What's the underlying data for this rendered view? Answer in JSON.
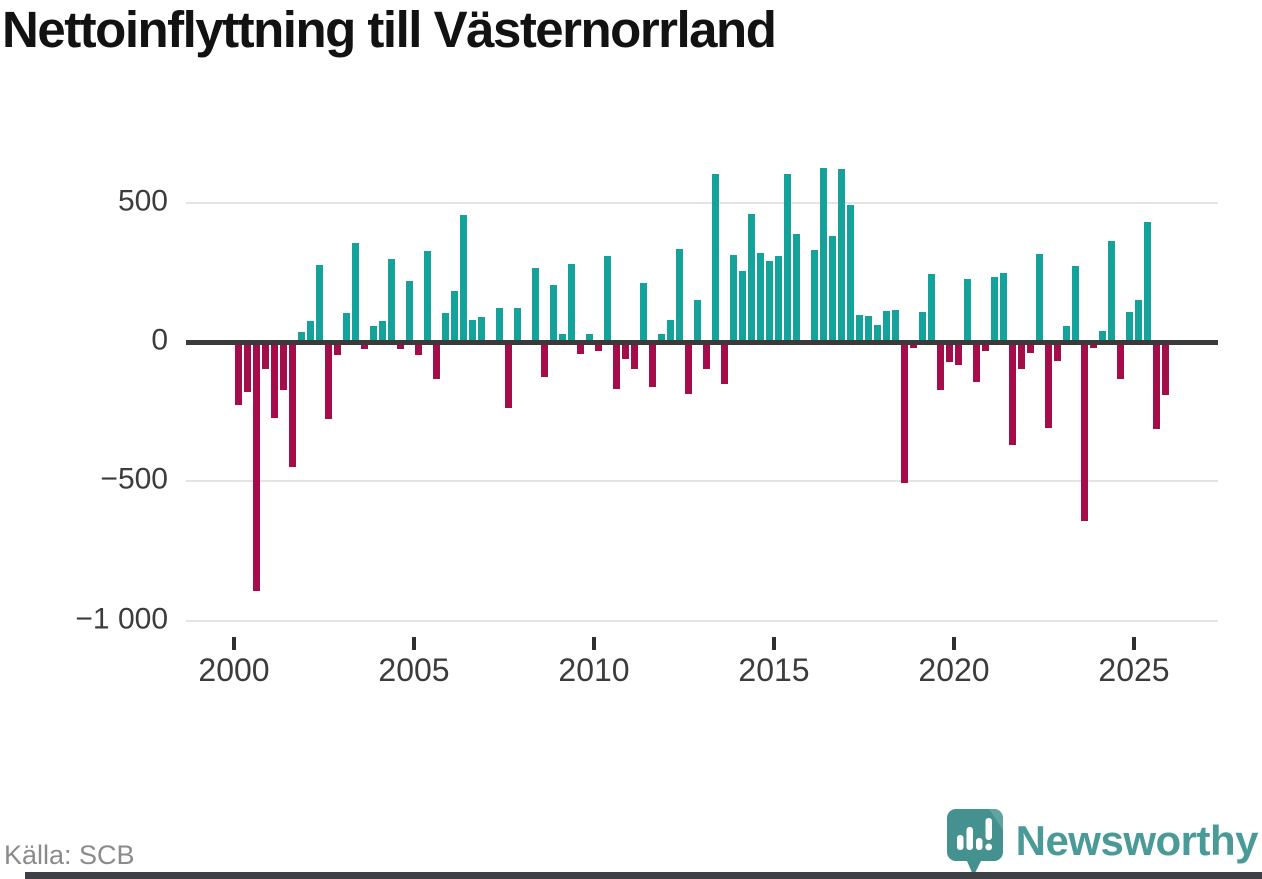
{
  "title": "Nettoinflyttning till Västernorrland",
  "source": "Källa: SCB",
  "brand": {
    "name": "Newsworthy",
    "color": "#4a9a97"
  },
  "colors": {
    "positive_bar": "#14a29b",
    "negative_bar": "#a50d4a",
    "zero_axis": "#3a3a3a",
    "gridline": "#e4e4e4",
    "tick_label": "#3c3c3c",
    "source_text": "#8b8b8b",
    "bottom_strip": "#3d4045"
  },
  "chart_data": {
    "type": "bar",
    "title": "Nettoinflyttning till Västernorrland",
    "frequency": "quarterly",
    "x_start": "2000Q1",
    "x_end": "2025Q4",
    "grid": "horizontal",
    "legend": "none",
    "ylim": [
      -1050,
      660
    ],
    "y_ticks": [
      500,
      0,
      -500,
      -1000
    ],
    "y_tick_labels": [
      "500",
      "0",
      "−500",
      "−1 000"
    ],
    "x_tick_labels": [
      "2000",
      "2005",
      "2010",
      "2015",
      "2020",
      "2025"
    ],
    "categories": [
      "2000Q1",
      "2000Q2",
      "2000Q3",
      "2000Q4",
      "2001Q1",
      "2001Q2",
      "2001Q3",
      "2001Q4",
      "2002Q1",
      "2002Q2",
      "2002Q3",
      "2002Q4",
      "2003Q1",
      "2003Q2",
      "2003Q3",
      "2003Q4",
      "2004Q1",
      "2004Q2",
      "2004Q3",
      "2004Q4",
      "2005Q1",
      "2005Q2",
      "2005Q3",
      "2005Q4",
      "2006Q1",
      "2006Q2",
      "2006Q3",
      "2006Q4",
      "2007Q1",
      "2007Q2",
      "2007Q3",
      "2007Q4",
      "2008Q1",
      "2008Q2",
      "2008Q3",
      "2008Q4",
      "2009Q1",
      "2009Q2",
      "2009Q3",
      "2009Q4",
      "2010Q1",
      "2010Q2",
      "2010Q3",
      "2010Q4",
      "2011Q1",
      "2011Q2",
      "2011Q3",
      "2011Q4",
      "2012Q1",
      "2012Q2",
      "2012Q3",
      "2012Q4",
      "2013Q1",
      "2013Q2",
      "2013Q3",
      "2013Q4",
      "2014Q1",
      "2014Q2",
      "2014Q3",
      "2014Q4",
      "2015Q1",
      "2015Q2",
      "2015Q3",
      "2015Q4",
      "2016Q1",
      "2016Q2",
      "2016Q3",
      "2016Q4",
      "2017Q1",
      "2017Q2",
      "2017Q3",
      "2017Q4",
      "2018Q1",
      "2018Q2",
      "2018Q3",
      "2018Q4",
      "2019Q1",
      "2019Q2",
      "2019Q3",
      "2019Q4",
      "2020Q1",
      "2020Q2",
      "2020Q3",
      "2020Q4",
      "2021Q1",
      "2021Q2",
      "2021Q3",
      "2021Q4",
      "2022Q1",
      "2022Q2",
      "2022Q3",
      "2022Q4",
      "2023Q1",
      "2023Q2",
      "2023Q3",
      "2023Q4",
      "2024Q1",
      "2024Q2",
      "2024Q3",
      "2024Q4",
      "2025Q1",
      "2025Q2",
      "2025Q3",
      "2025Q4"
    ],
    "series": [
      {
        "name": "Nettoinflyttning",
        "values": [
          -219,
          -173,
          -885,
          -90,
          -267,
          -165,
          -442,
          36,
          77,
          278,
          -268,
          -41,
          104,
          355,
          -18,
          57,
          75,
          298,
          -18,
          220,
          -39,
          325,
          -125,
          105,
          182,
          455,
          80,
          89,
          0,
          121,
          -231,
          123,
          0,
          266,
          -117,
          203,
          30,
          280,
          -36,
          28,
          -24,
          308,
          -161,
          -54,
          -90,
          212,
          -155,
          28,
          78,
          333,
          -179,
          152,
          -90,
          602,
          -143,
          313,
          256,
          461,
          318,
          292,
          310,
          604,
          387,
          0,
          330,
          625,
          380,
          620,
          490,
          98,
          95,
          60,
          111,
          116,
          -500,
          -14,
          108,
          244,
          -165,
          -66,
          -75,
          226,
          -137,
          -26,
          235,
          247,
          -361,
          -88,
          -32,
          316,
          -300,
          -60,
          56,
          271,
          -634,
          -15,
          39,
          361,
          -125,
          107,
          149,
          431,
          -304,
          -184
        ]
      }
    ]
  }
}
